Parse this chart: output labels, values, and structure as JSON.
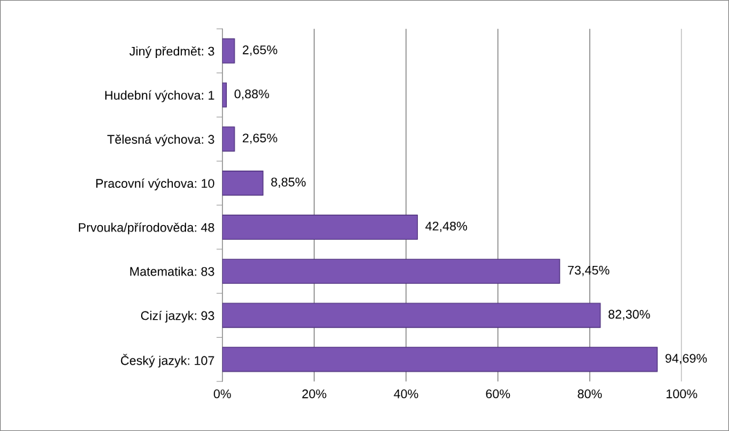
{
  "chart_data": {
    "type": "bar",
    "orientation": "horizontal",
    "categories": [
      "Jiný předmět: 3",
      "Hudební výchova: 1",
      "Tělesná výchova: 3",
      "Pracovní výchova: 10",
      "Prvouka/přírodověda: 48",
      "Matematika: 83",
      "Cizí jazyk: 93",
      "Český jazyk: 107"
    ],
    "values": [
      2.65,
      0.88,
      2.65,
      8.85,
      42.48,
      73.45,
      82.3,
      94.69
    ],
    "value_labels": [
      "2,65%",
      "0,88%",
      "2,65%",
      "8,85%",
      "42,48%",
      "73,45%",
      "82,30%",
      "94,69%"
    ],
    "color": "#7b55b3",
    "xlim": [
      0,
      100
    ],
    "xticks": [
      {
        "value": 0,
        "label": "0%"
      },
      {
        "value": 20,
        "label": "20%"
      },
      {
        "value": 40,
        "label": "40%"
      },
      {
        "value": 60,
        "label": "60%"
      },
      {
        "value": 80,
        "label": "80%"
      },
      {
        "value": 100,
        "label": "100%"
      }
    ],
    "grid": "x",
    "legend": false
  }
}
